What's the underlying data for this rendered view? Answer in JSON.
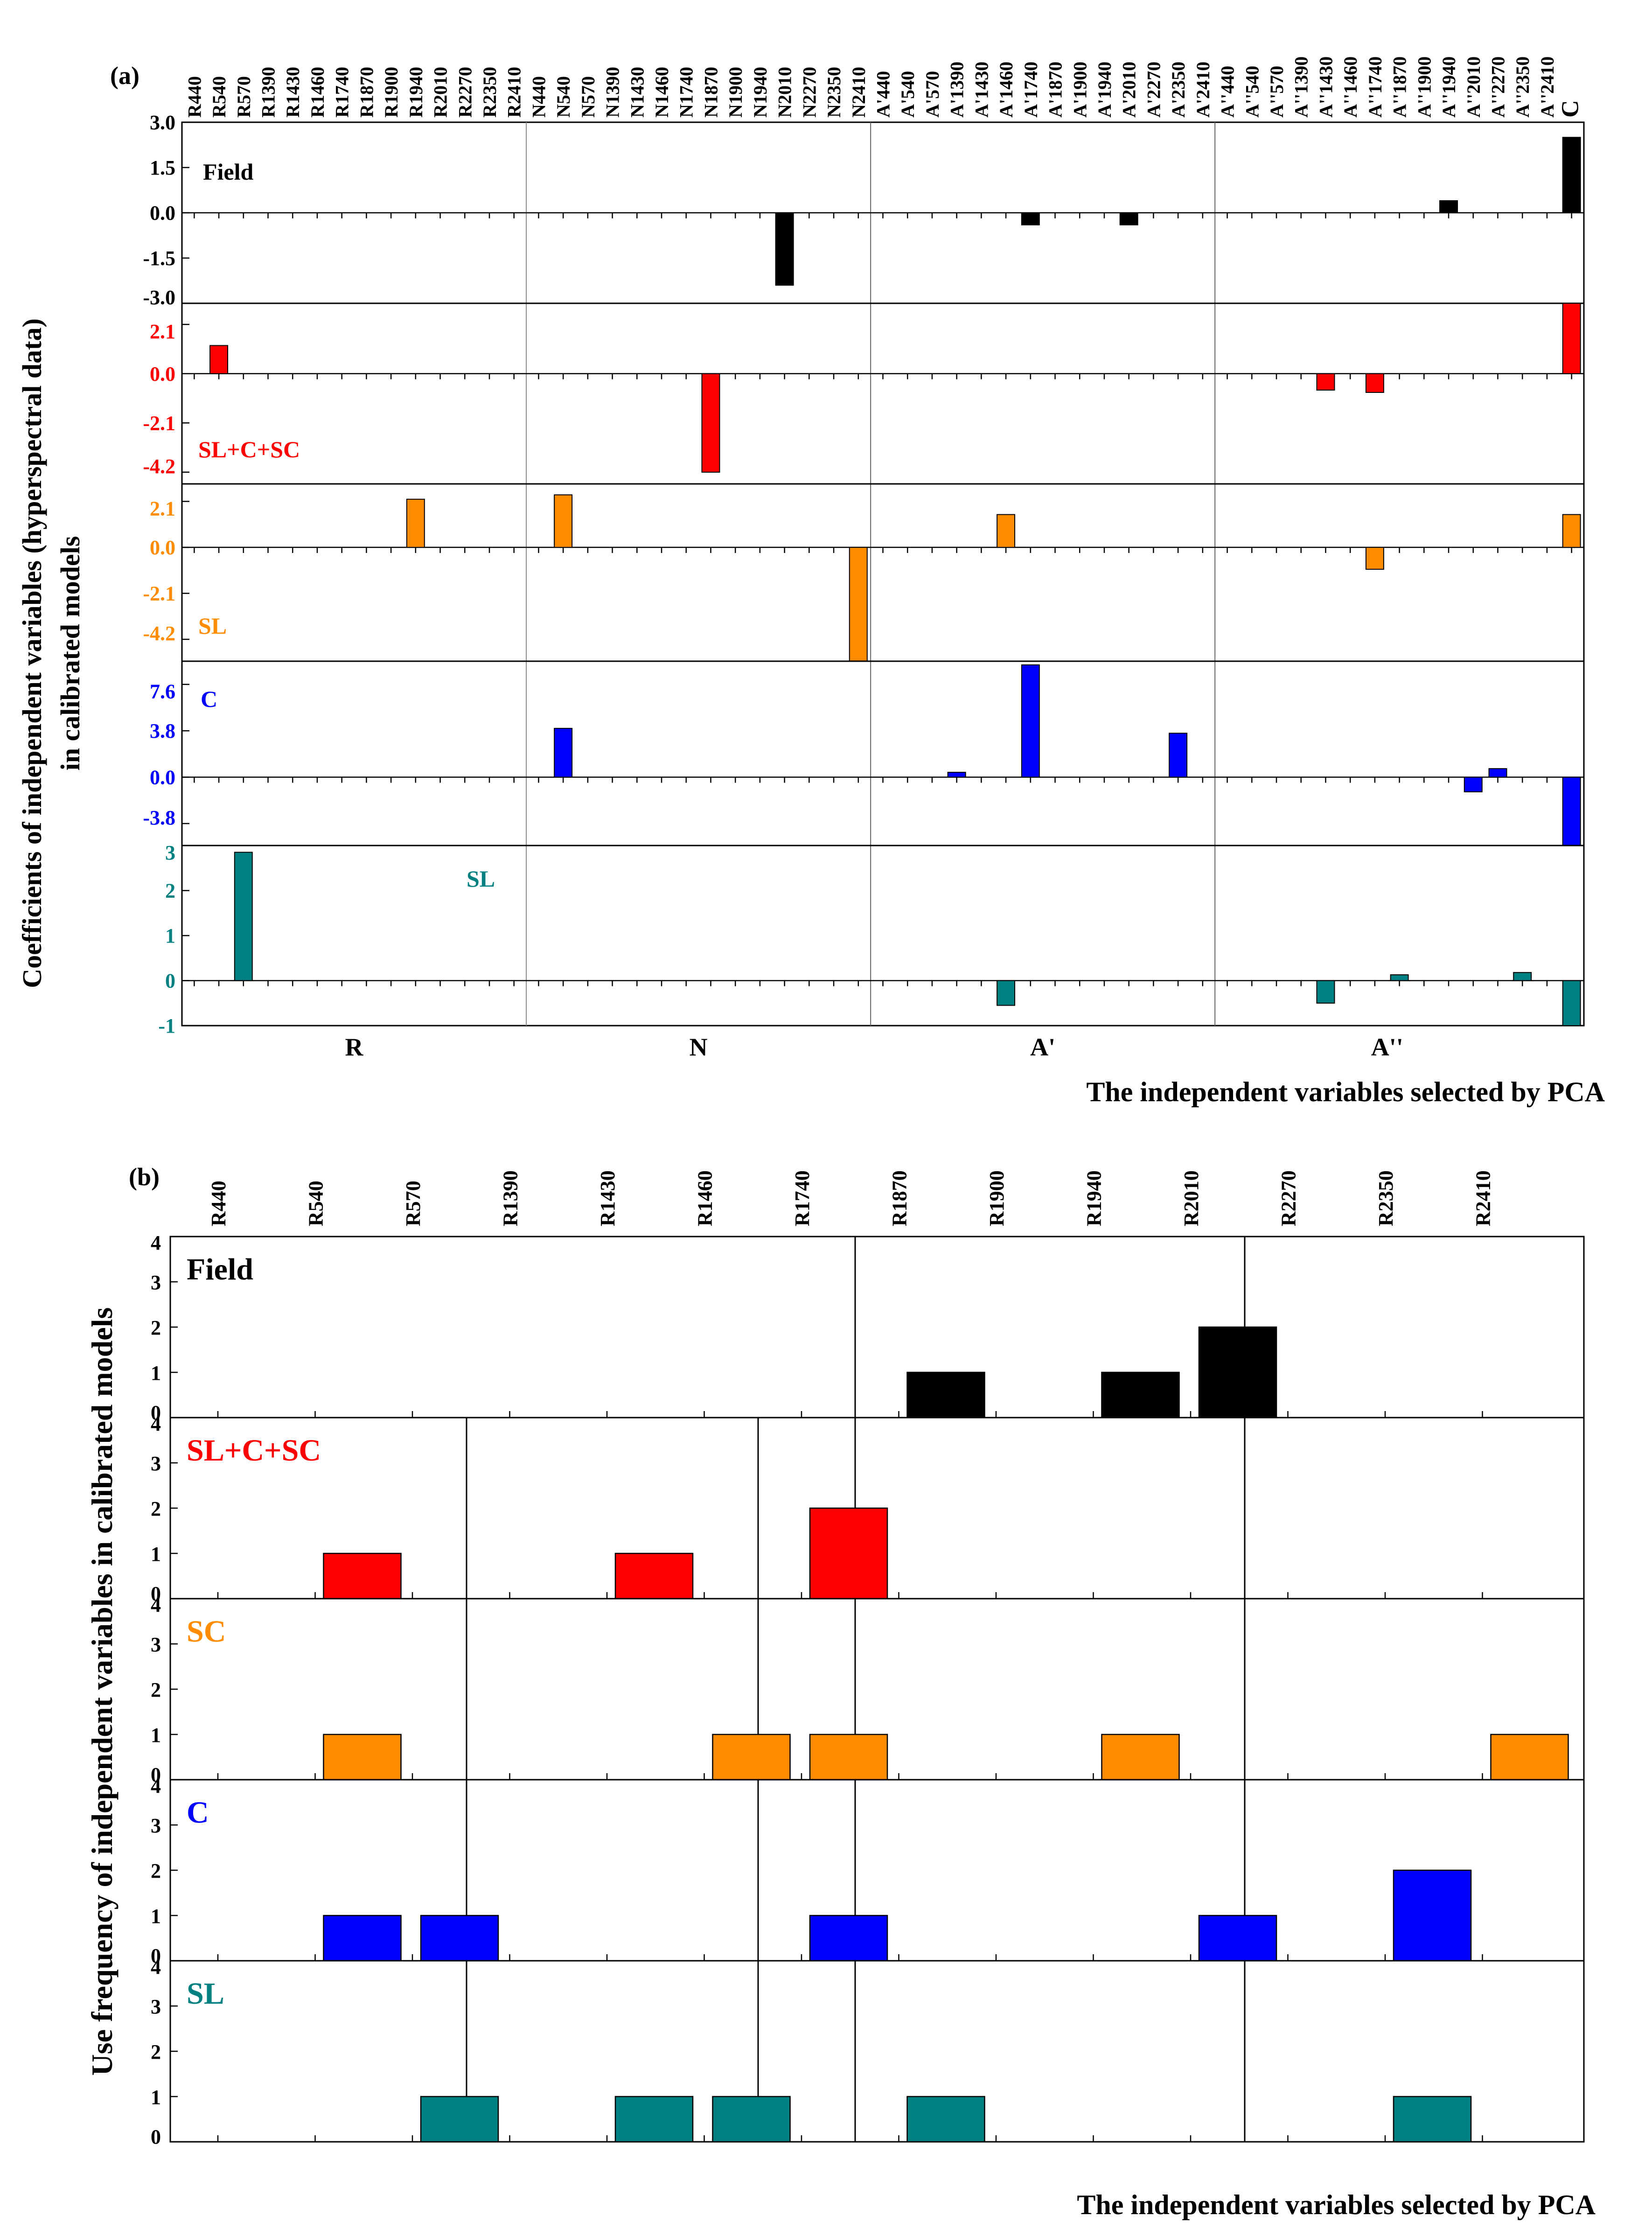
{
  "figure": {
    "panel_a_tag": "(a)",
    "panel_b_tag": "(b)",
    "ylabel_a_line1": "Coefficients of independent variables (hyperspectral data)",
    "ylabel_a_line2": "in calibrated models",
    "xlabel_a": "The independent variables selected by PCA",
    "ylabel_b": "Use frequency of independent variables in calibrated models",
    "xlabel_b": "The independent variables selected by PCA"
  },
  "colors": {
    "black": "#000000",
    "red": "#ff0000",
    "orange": "#ff8c00",
    "blue": "#0000ff",
    "teal": "#008080"
  },
  "chart_data": [
    {
      "type": "bar",
      "panel": "(a)",
      "categories": [
        "R440",
        "R540",
        "R570",
        "R1390",
        "R1430",
        "R1460",
        "R1740",
        "R1870",
        "R1900",
        "R1940",
        "R2010",
        "R2270",
        "R2350",
        "R2410",
        "N440",
        "N540",
        "N570",
        "N1390",
        "N1430",
        "N1460",
        "N1740",
        "N1870",
        "N1900",
        "N1940",
        "N2010",
        "N2270",
        "N2350",
        "N2410",
        "A'440",
        "A'540",
        "A'570",
        "A'1390",
        "A'1430",
        "A'1460",
        "A'1740",
        "A'1870",
        "A'1900",
        "A'1940",
        "A'2010",
        "A'2270",
        "A'2350",
        "A'2410",
        "A''440",
        "A''540",
        "A''570",
        "A''1390",
        "A''1430",
        "A''1460",
        "A''1740",
        "A''1870",
        "A''1900",
        "A''1940",
        "A''2010",
        "A''2270",
        "A''2350",
        "A''2410",
        "C"
      ],
      "groups": [
        "R",
        "N",
        "A'",
        "A''"
      ],
      "xlabel": "The independent variables selected by PCA",
      "ylabel": "Coefficients of independent variables (hyperspectral data) in calibrated models",
      "subplots": [
        {
          "label": "Field",
          "color": "#000000",
          "ylim": [
            -3.0,
            3.0
          ],
          "ticks": [
            "3.0",
            "1.5",
            "0.0",
            "-1.5",
            "-3.0"
          ],
          "tick_values": [
            3.0,
            1.5,
            0.0,
            -1.5,
            -3.0
          ],
          "bars": [
            {
              "x": "N2010",
              "value": -2.4
            },
            {
              "x": "A'1740",
              "value": -0.4
            },
            {
              "x": "A'2010",
              "value": -0.4
            },
            {
              "x": "A''1940",
              "value": 0.4
            },
            {
              "x": "C",
              "value": 2.5
            }
          ]
        },
        {
          "label": "SL+C+SC",
          "color": "#ff0000",
          "ylim": [
            -4.7,
            3.0
          ],
          "ticks": [
            "2.1",
            "0.0",
            "-2.1",
            "-4.2"
          ],
          "tick_values": [
            2.1,
            0.0,
            -2.1,
            -4.2
          ],
          "bars": [
            {
              "x": "R540",
              "value": 1.2
            },
            {
              "x": "N1870",
              "value": -4.2
            },
            {
              "x": "A''1430",
              "value": -0.7
            },
            {
              "x": "A''1740",
              "value": -0.8
            },
            {
              "x": "C",
              "value": 3.0
            }
          ]
        },
        {
          "label": "SL",
          "color": "#ff8c00",
          "ylim": [
            -5.2,
            2.9
          ],
          "ticks": [
            "2.1",
            "0.0",
            "-2.1",
            "-4.2"
          ],
          "tick_values": [
            2.1,
            0.0,
            -2.1,
            -4.2
          ],
          "bars": [
            {
              "x": "R1940",
              "value": 2.2
            },
            {
              "x": "N540",
              "value": 2.4
            },
            {
              "x": "N2410",
              "value": -5.2
            },
            {
              "x": "A'1460",
              "value": 1.5
            },
            {
              "x": "A''1740",
              "value": -1.0
            },
            {
              "x": "C",
              "value": 1.5
            }
          ]
        },
        {
          "label": "C",
          "color": "#0000ff",
          "ylim": [
            -5.6,
            9.5
          ],
          "ticks": [
            "7.6",
            "3.8",
            "0.0",
            "-3.8"
          ],
          "tick_values": [
            7.6,
            3.8,
            0.0,
            -3.8
          ],
          "bars": [
            {
              "x": "N540",
              "value": 4.0
            },
            {
              "x": "A'1390",
              "value": 0.4
            },
            {
              "x": "A'1740",
              "value": 9.2
            },
            {
              "x": "A'2350",
              "value": 3.6
            },
            {
              "x": "A''2010",
              "value": -1.2
            },
            {
              "x": "A''2270",
              "value": 0.7
            },
            {
              "x": "C",
              "value": -5.6
            }
          ]
        },
        {
          "label": "SL",
          "color": "#008080",
          "ylim": [
            -1.0,
            3.0
          ],
          "ticks": [
            "3",
            "2",
            "1",
            "0",
            "-1"
          ],
          "tick_values": [
            3,
            2,
            1,
            0,
            -1
          ],
          "bars": [
            {
              "x": "R570",
              "value": 2.85
            },
            {
              "x": "A'1460",
              "value": -0.55
            },
            {
              "x": "A''1430",
              "value": -0.5
            },
            {
              "x": "A''1870",
              "value": 0.13
            },
            {
              "x": "A''2350",
              "value": 0.18
            },
            {
              "x": "C",
              "value": -1.0
            }
          ]
        }
      ]
    },
    {
      "type": "bar",
      "panel": "(b)",
      "categories": [
        "R440",
        "R540",
        "R570",
        "R1390",
        "R1430",
        "R1460",
        "R1740",
        "R1870",
        "R1900",
        "R1940",
        "R2010",
        "R2270",
        "R2350",
        "R2410"
      ],
      "xlabel": "The independent variables selected by PCA",
      "ylabel": "Use frequency of independent variables in calibrated models",
      "ylim": [
        0,
        4
      ],
      "ticks": [
        "4",
        "3",
        "2",
        "1",
        "0"
      ],
      "tick_values": [
        4,
        3,
        2,
        1,
        0
      ],
      "subplots": [
        {
          "label": "Field",
          "color": "#000000",
          "values": [
            0,
            0,
            0,
            0,
            0,
            0,
            0,
            1,
            0,
            1,
            2,
            0,
            0,
            0
          ]
        },
        {
          "label": "SL+C+SC",
          "color": "#ff0000",
          "values": [
            0,
            1,
            0,
            0,
            1,
            0,
            2,
            0,
            0,
            0,
            0,
            0,
            0,
            0
          ]
        },
        {
          "label": "SC",
          "color": "#ff8c00",
          "values": [
            0,
            1,
            0,
            0,
            0,
            1,
            1,
            0,
            0,
            1,
            0,
            0,
            0,
            1
          ]
        },
        {
          "label": "C",
          "color": "#0000ff",
          "values": [
            0,
            1,
            1,
            0,
            0,
            0,
            1,
            0,
            0,
            0,
            1,
            0,
            2,
            0
          ]
        },
        {
          "label": "SL",
          "color": "#008080",
          "values": [
            0,
            0,
            1,
            0,
            1,
            1,
            0,
            1,
            0,
            0,
            0,
            0,
            1,
            0
          ]
        }
      ]
    }
  ]
}
